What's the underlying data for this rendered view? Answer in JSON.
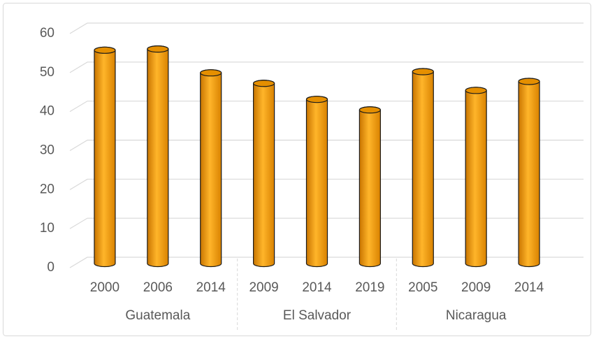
{
  "chart_data": {
    "type": "bar3d",
    "groups": [
      {
        "name": "Guatemala",
        "categories": [
          "2000",
          "2006",
          "2014"
        ],
        "values": [
          54.3,
          54.6,
          48.5
        ]
      },
      {
        "name": "El Salvador",
        "categories": [
          "2009",
          "2014",
          "2019"
        ],
        "values": [
          45.8,
          41.7,
          39.0
        ]
      },
      {
        "name": "Nicaragua",
        "categories": [
          "2005",
          "2009",
          "2014"
        ],
        "values": [
          48.8,
          44.0,
          46.3
        ]
      }
    ],
    "color": "#ffa000",
    "ylim": [
      0,
      60
    ],
    "yticks": [
      0,
      10,
      20,
      30,
      40,
      50,
      60
    ],
    "grid": true
  }
}
